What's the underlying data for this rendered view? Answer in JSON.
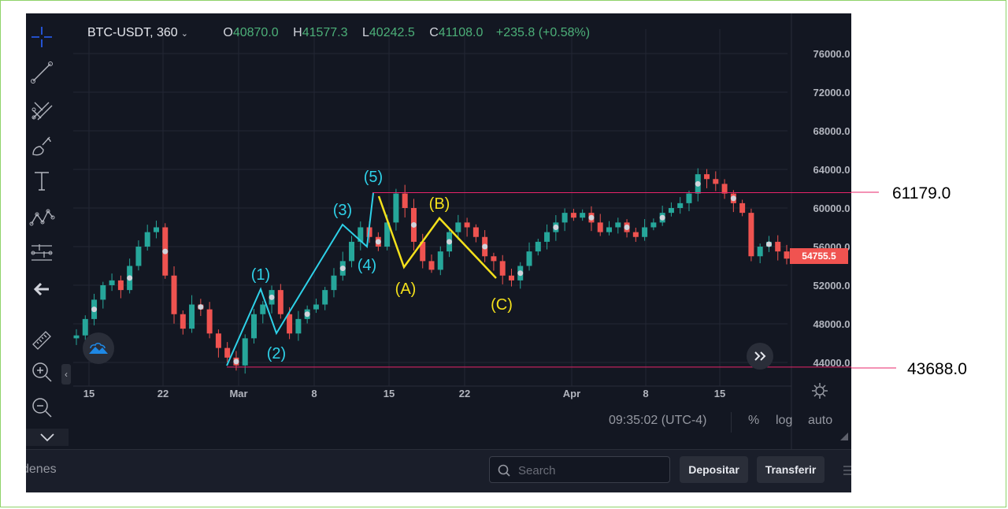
{
  "legend": {
    "symbol": "BTC-USDT, 360",
    "open_label": "O",
    "open": "40870.0",
    "high_label": "H",
    "high": "41577.3",
    "low_label": "L",
    "low": "40242.5",
    "close_label": "C",
    "close": "41108.0",
    "change": "+235.8 (+0.58%)"
  },
  "price_axis": {
    "ticks": [
      "76000.0",
      "72000.0",
      "68000.0",
      "64000.0",
      "60000.0",
      "56000.0",
      "52000.0",
      "48000.0",
      "44000.0"
    ],
    "current_price": "54755.5",
    "current_price_color": "#f05350"
  },
  "time_axis": {
    "ticks": [
      "15",
      "22",
      "Mar",
      "8",
      "15",
      "22",
      "Apr",
      "8",
      "15"
    ]
  },
  "time_bar": {
    "clock": "09:35:02 (UTC-4)",
    "percent": "%",
    "log": "log",
    "auto": "auto"
  },
  "annotations": {
    "top_level": "61179.0",
    "bottom_level": "43688.0",
    "level_color": "#e8246a"
  },
  "waves": {
    "impulse_color": "#2ed1e8",
    "corrective_color": "#f3e01b",
    "impulse": [
      {
        "label": "(1)",
        "price": 51400
      },
      {
        "label": "(2)",
        "price": 47000
      },
      {
        "label": "(3)",
        "price": 58000
      },
      {
        "label": "(4)",
        "price": 55900
      },
      {
        "label": "(5)",
        "price": 61500
      }
    ],
    "corrective": [
      {
        "label": "(A)",
        "price": 53600
      },
      {
        "label": "(B)",
        "price": 58600
      },
      {
        "label": "(C)",
        "price": 52500
      }
    ]
  },
  "bottom_bar": {
    "tab_label": "denes",
    "search_placeholder": "Search",
    "deposit_label": "Depositar",
    "transfer_label": "Transferir"
  },
  "toolbar": {
    "icons": [
      "crosshair-icon",
      "trend-line-icon",
      "pitchfork-icon",
      "brush-icon",
      "text-icon",
      "pattern-icon",
      "measure-icon",
      "back-arrow-icon",
      "ruler-icon",
      "zoom-in-icon",
      "zoom-out-icon",
      "collapse-icon"
    ]
  },
  "chart_data": {
    "type": "candlestick",
    "title": "",
    "xlabel": "",
    "ylabel": "",
    "ylim": [
      43000,
      78000
    ],
    "x_ticks": [
      "15",
      "22",
      "Mar",
      "8",
      "15",
      "22",
      "Apr",
      "8",
      "15"
    ],
    "close_path": [
      46800,
      48500,
      50500,
      52000,
      52500,
      51500,
      54000,
      56000,
      57500,
      58000,
      53000,
      49000,
      47500,
      50000,
      49500,
      47000,
      45500,
      44500,
      43688,
      46500,
      49000,
      50000,
      51500,
      49000,
      47000,
      48500,
      49500,
      50000,
      51500,
      53000,
      54500,
      56500,
      58000,
      57000,
      56000,
      58500,
      61500,
      60000,
      56500,
      54500,
      53600,
      55500,
      57500,
      58500,
      58000,
      57000,
      55000,
      54500,
      53000,
      52500,
      54000,
      55500,
      56500,
      57500,
      58500,
      59500,
      59000,
      59500,
      58500,
      57500,
      58000,
      58500,
      57500,
      57000,
      58000,
      58500,
      59500,
      60000,
      60500,
      61500,
      63500,
      63000,
      62500,
      61500,
      60500,
      59500,
      55000,
      56000,
      56500,
      55500,
      54755.5
    ],
    "levels": [
      61179.0,
      43688.0
    ],
    "current_price": 54755.5
  }
}
